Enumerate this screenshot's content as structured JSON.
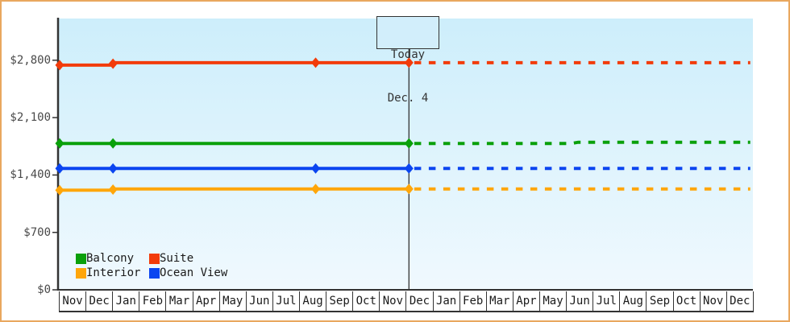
{
  "page": {
    "border_color": "#e9a75f",
    "plot_bg_top": "#cdeefb",
    "plot_bg_bottom": "#f0f9fe",
    "axis_color": "#333333"
  },
  "chart_data": {
    "type": "line",
    "title": "",
    "xlabel": "",
    "ylabel": "",
    "ylim": [
      0,
      3310
    ],
    "x_months_total": 26,
    "grid": false,
    "legend_position": "inside-bottom-left",
    "x_months": [
      "Nov",
      "Dec",
      "Jan",
      "Feb",
      "Mar",
      "Apr",
      "May",
      "Jun",
      "Jul",
      "Aug",
      "Sep",
      "Oct",
      "Nov",
      "Dec",
      "Jan",
      "Feb",
      "Mar",
      "Apr",
      "May",
      "Jun",
      "Jul",
      "Aug",
      "Sep",
      "Oct",
      "Nov",
      "Dec"
    ],
    "y_ticks": [
      {
        "label": "$0",
        "value": 0
      },
      {
        "label": "$700",
        "value": 700
      },
      {
        "label": "$1,400",
        "value": 1400
      },
      {
        "label": "$2,100",
        "value": 2100
      },
      {
        "label": "$2,800",
        "value": 2800
      }
    ],
    "today": {
      "month_offset": 13.1,
      "line1": "Today",
      "line2": "Dec. 4"
    },
    "series": [
      {
        "name": "Suite",
        "color": "#f23b0a",
        "history": [
          {
            "m": 0,
            "price": 2740
          },
          {
            "m": 2,
            "price": 2740
          },
          {
            "m": 2,
            "price": 2770
          },
          {
            "m": 9.6,
            "price": 2770
          },
          {
            "m": 13.1,
            "price": 2770
          }
        ],
        "markers": [
          {
            "m": 0,
            "price": 2740
          },
          {
            "m": 2,
            "price": 2758
          },
          {
            "m": 9.6,
            "price": 2770
          },
          {
            "m": 13.1,
            "price": 2770
          }
        ],
        "forecast": [
          {
            "m": 13.3,
            "price": 2770
          },
          {
            "m": 25.9,
            "price": 2770
          }
        ]
      },
      {
        "name": "Balcony",
        "color": "#0aa00a",
        "history": [
          {
            "m": 0,
            "price": 1785
          },
          {
            "m": 2,
            "price": 1785
          },
          {
            "m": 13.1,
            "price": 1785
          }
        ],
        "markers": [
          {
            "m": 0,
            "price": 1785
          },
          {
            "m": 2,
            "price": 1785
          },
          {
            "m": 13.1,
            "price": 1785
          }
        ],
        "forecast": [
          {
            "m": 13.3,
            "price": 1785
          },
          {
            "m": 19.2,
            "price": 1785
          },
          {
            "m": 19.45,
            "price": 1800
          },
          {
            "m": 25.9,
            "price": 1800
          }
        ]
      },
      {
        "name": "Ocean View",
        "color": "#0b45f0",
        "history": [
          {
            "m": 0,
            "price": 1480
          },
          {
            "m": 2,
            "price": 1480
          },
          {
            "m": 9.6,
            "price": 1480
          },
          {
            "m": 13.1,
            "price": 1480
          }
        ],
        "markers": [
          {
            "m": 0,
            "price": 1480
          },
          {
            "m": 2,
            "price": 1480
          },
          {
            "m": 9.6,
            "price": 1480
          },
          {
            "m": 13.1,
            "price": 1480
          }
        ],
        "forecast": [
          {
            "m": 13.3,
            "price": 1480
          },
          {
            "m": 25.9,
            "price": 1480
          }
        ]
      },
      {
        "name": "Interior",
        "color": "#ffa60a",
        "history": [
          {
            "m": 0,
            "price": 1215
          },
          {
            "m": 2,
            "price": 1215
          },
          {
            "m": 2,
            "price": 1230
          },
          {
            "m": 9.6,
            "price": 1230
          },
          {
            "m": 13.1,
            "price": 1230
          }
        ],
        "markers": [
          {
            "m": 0,
            "price": 1215
          },
          {
            "m": 2,
            "price": 1222
          },
          {
            "m": 9.6,
            "price": 1230
          },
          {
            "m": 13.1,
            "price": 1230
          }
        ],
        "forecast": [
          {
            "m": 13.3,
            "price": 1230
          },
          {
            "m": 25.9,
            "price": 1230
          }
        ]
      }
    ],
    "legend": [
      {
        "label": "Balcony",
        "color": "#0aa00a"
      },
      {
        "label": "Suite",
        "color": "#f23b0a"
      },
      {
        "label": "Interior",
        "color": "#ffa60a"
      },
      {
        "label": "Ocean View",
        "color": "#0b45f0"
      }
    ]
  }
}
